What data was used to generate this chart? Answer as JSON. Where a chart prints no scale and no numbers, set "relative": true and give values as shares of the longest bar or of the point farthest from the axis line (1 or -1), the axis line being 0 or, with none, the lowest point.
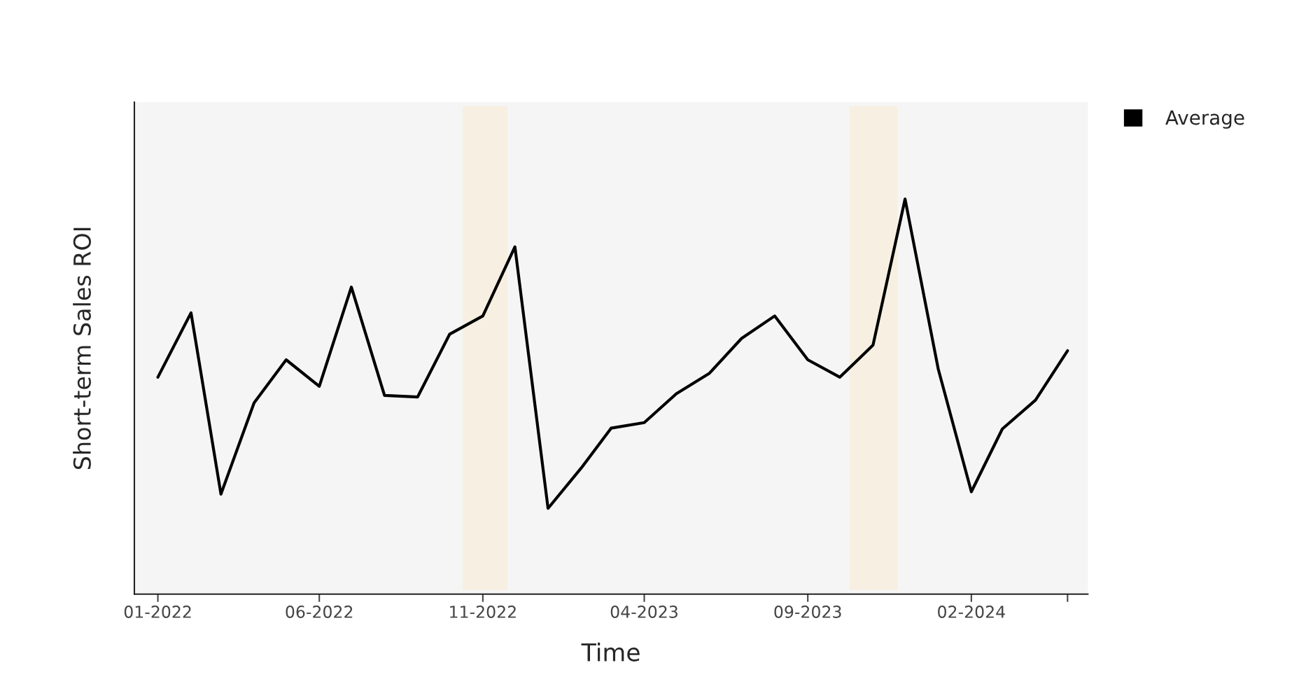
{
  "chart_data": {
    "type": "line",
    "relative": true,
    "xlabel": "Time",
    "ylabel": "Short-term Sales ROI",
    "x": [
      "2022-01",
      "2022-02",
      "2022-03",
      "2022-04",
      "2022-05",
      "2022-06",
      "2022-07",
      "2022-08",
      "2022-09",
      "2022-10",
      "2022-11",
      "2022-12",
      "2023-01",
      "2023-02",
      "2023-03",
      "2023-04",
      "2023-05",
      "2023-06",
      "2023-07",
      "2023-08",
      "2023-09",
      "2023-10",
      "2023-11",
      "2023-12",
      "2024-01",
      "2024-02",
      "2024-03",
      "2024-04",
      "2024-05"
    ],
    "series": [
      {
        "name": "Average",
        "color": "#000000",
        "values": [
          0.549,
          0.712,
          0.253,
          0.484,
          0.593,
          0.526,
          0.777,
          0.503,
          0.499,
          0.658,
          0.704,
          0.879,
          0.217,
          0.319,
          0.42,
          0.434,
          0.507,
          0.559,
          0.647,
          0.704,
          0.593,
          0.549,
          0.63,
          1.0,
          0.57,
          0.259,
          0.418,
          0.491,
          0.616
        ]
      }
    ],
    "xlim": [
      "2021-12-10",
      "2024-05-20"
    ],
    "xticks": [
      {
        "value": "2022-01",
        "label": "01-2022"
      },
      {
        "value": "2022-06",
        "label": "06-2022"
      },
      {
        "value": "2022-11",
        "label": "11-2022"
      },
      {
        "value": "2023-04",
        "label": "04-2023"
      },
      {
        "value": "2023-09",
        "label": "09-2023"
      },
      {
        "value": "2024-02",
        "label": "02-2024"
      },
      {
        "value": "2024-05",
        "label": null
      }
    ],
    "bands": [
      {
        "axis": "x",
        "from": "2022-10-13",
        "to": "2022-11-24",
        "color": "#f7f0e2"
      },
      {
        "axis": "x",
        "from": "2023-10-10",
        "to": "2023-11-24",
        "color": "#f7f0e2"
      }
    ],
    "tick_labels": "x",
    "grid": false,
    "legend": "top right",
    "marker": "none",
    "line_style": "solid"
  }
}
